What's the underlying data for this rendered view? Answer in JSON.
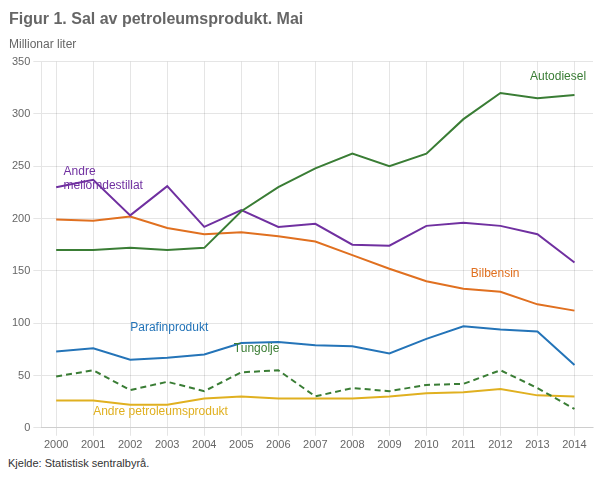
{
  "chart_data": {
    "type": "line",
    "title": "Figur 1. Sal av petroleumsprodukt. Mai",
    "y_label": "Millionar liter",
    "source": "Kjelde: Statistisk sentralbyrå.",
    "x": [
      2000,
      2001,
      2002,
      2003,
      2004,
      2005,
      2006,
      2007,
      2008,
      2009,
      2010,
      2011,
      2012,
      2013,
      2014
    ],
    "series": [
      {
        "name": "Autodiesel",
        "color": "#3a7d35",
        "line_style": "solid",
        "values": [
          170,
          170,
          172,
          170,
          172,
          207,
          230,
          248,
          262,
          250,
          262,
          295,
          320,
          315,
          318
        ]
      },
      {
        "name": "Andre mellomdestillat",
        "color": "#7030a0",
        "line_style": "solid",
        "values": [
          230,
          237,
          203,
          231,
          192,
          208,
          192,
          195,
          175,
          174,
          193,
          196,
          193,
          185,
          158
        ]
      },
      {
        "name": "Bilbensin",
        "color": "#e07020",
        "line_style": "solid",
        "values": [
          199,
          198,
          202,
          191,
          185,
          187,
          183,
          178,
          165,
          152,
          140,
          133,
          130,
          118,
          112
        ]
      },
      {
        "name": "Parafinprodukt",
        "color": "#2474b8",
        "line_style": "solid",
        "values": [
          73,
          76,
          65,
          67,
          70,
          81,
          82,
          79,
          78,
          71,
          85,
          97,
          94,
          92,
          60
        ]
      },
      {
        "name": "Tungolje",
        "color": "#3a7d35",
        "line_style": "dashed",
        "values": [
          49,
          55,
          36,
          44,
          35,
          53,
          55,
          30,
          38,
          35,
          41,
          42,
          55,
          38,
          18
        ]
      },
      {
        "name": "Andre petroleumsprodukt",
        "color": "#e0b020",
        "line_style": "solid",
        "values": [
          26,
          26,
          22,
          22,
          28,
          30,
          28,
          28,
          28,
          30,
          33,
          34,
          37,
          31,
          30
        ]
      }
    ],
    "annotations": [
      {
        "text": "Autodiesel",
        "x": 2012.8,
        "y": 328,
        "color": "#3a7d35",
        "position": "above"
      },
      {
        "text": "Andre\nmellomdestillat",
        "x": 2000.2,
        "y": 252,
        "color": "#7030a0",
        "position": "below"
      },
      {
        "text": "Bilbensin",
        "x": 2011.2,
        "y": 155,
        "color": "#e07020",
        "position": "below"
      },
      {
        "text": "Parafinprodukt",
        "x": 2002.0,
        "y": 88,
        "color": "#2474b8",
        "position": "above"
      },
      {
        "text": "Tungolje",
        "x": 2004.8,
        "y": 68,
        "color": "#3a7d35",
        "position": "above"
      },
      {
        "text": "Andre petroleumsprodukt",
        "x": 2001.0,
        "y": 8,
        "color": "#e0b020",
        "position": "above"
      }
    ],
    "xlim": [
      1999.6,
      2014.5
    ],
    "xticks": [
      2000,
      2001,
      2002,
      2003,
      2004,
      2005,
      2006,
      2007,
      2008,
      2009,
      2010,
      2011,
      2012,
      2013,
      2014
    ],
    "ylim": [
      0,
      350
    ],
    "yticks": [
      0,
      50,
      100,
      150,
      200,
      250,
      300,
      350
    ],
    "grid": true
  }
}
